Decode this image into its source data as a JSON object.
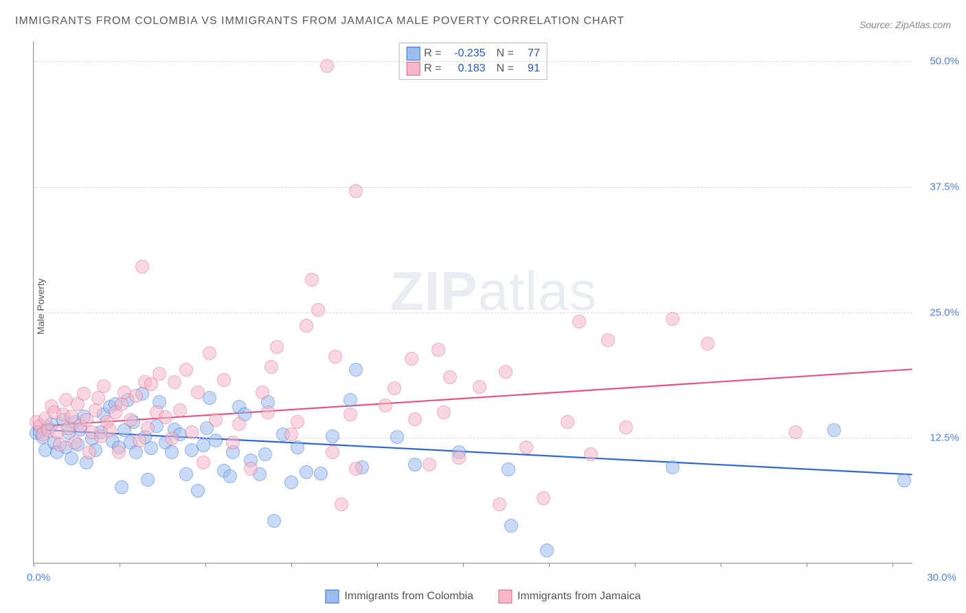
{
  "title": "IMMIGRANTS FROM COLOMBIA VS IMMIGRANTS FROM JAMAICA MALE POVERTY CORRELATION CHART",
  "source": "Source: ZipAtlas.com",
  "ylabel": "Male Poverty",
  "watermark_a": "ZIP",
  "watermark_b": "atlas",
  "chart": {
    "type": "scatter",
    "xlim": [
      0,
      30
    ],
    "ylim": [
      0,
      52
    ],
    "x_min_label": "0.0%",
    "x_max_label": "30.0%",
    "x_tick_positions": [
      0,
      2.93,
      5.86,
      8.79,
      11.72,
      14.65,
      17.58,
      20.51,
      23.44,
      26.37,
      29.3
    ],
    "y_ticks": [
      {
        "v": 12.5,
        "label": "12.5%"
      },
      {
        "v": 25.0,
        "label": "25.0%"
      },
      {
        "v": 37.5,
        "label": "37.5%"
      },
      {
        "v": 50.0,
        "label": "50.0%"
      }
    ],
    "background_color": "#ffffff",
    "grid_color": "#d8d8d8",
    "marker_radius": 10,
    "marker_opacity": 0.55,
    "line_width": 2.2,
    "series": [
      {
        "name": "Immigrants from Colombia",
        "color_fill": "#9cbdf0",
        "color_stroke": "#3a72d8",
        "line_color": "#2e66d0",
        "R": "-0.235",
        "N": "77",
        "trend": {
          "x1": 0,
          "y1": 13.3,
          "x2": 30,
          "y2": 8.8
        },
        "points": [
          [
            0.1,
            12.9
          ],
          [
            0.2,
            13.1
          ],
          [
            0.3,
            12.5
          ],
          [
            0.4,
            11.2
          ],
          [
            0.5,
            13.4
          ],
          [
            0.6,
            13.8
          ],
          [
            0.7,
            12.0
          ],
          [
            0.8,
            11.0
          ],
          [
            1.0,
            14.2
          ],
          [
            1.1,
            11.5
          ],
          [
            1.2,
            12.9
          ],
          [
            1.3,
            10.4
          ],
          [
            1.4,
            14.0
          ],
          [
            1.5,
            11.8
          ],
          [
            1.6,
            13.3
          ],
          [
            1.7,
            14.6
          ],
          [
            1.8,
            10.0
          ],
          [
            2.0,
            12.4
          ],
          [
            2.1,
            11.2
          ],
          [
            2.3,
            13.0
          ],
          [
            2.4,
            14.8
          ],
          [
            2.6,
            15.5
          ],
          [
            2.7,
            12.1
          ],
          [
            2.8,
            15.8
          ],
          [
            2.9,
            11.5
          ],
          [
            3.0,
            7.5
          ],
          [
            3.1,
            13.2
          ],
          [
            3.2,
            16.2
          ],
          [
            3.3,
            12.0
          ],
          [
            3.4,
            14.0
          ],
          [
            3.5,
            11.0
          ],
          [
            3.7,
            16.8
          ],
          [
            3.8,
            12.5
          ],
          [
            3.9,
            8.3
          ],
          [
            4.0,
            11.4
          ],
          [
            4.2,
            13.6
          ],
          [
            4.3,
            16.0
          ],
          [
            4.5,
            12.0
          ],
          [
            4.7,
            11.0
          ],
          [
            4.8,
            13.3
          ],
          [
            5.0,
            12.8
          ],
          [
            5.2,
            8.8
          ],
          [
            5.4,
            11.2
          ],
          [
            5.6,
            7.2
          ],
          [
            5.8,
            11.7
          ],
          [
            5.9,
            13.4
          ],
          [
            6.0,
            16.4
          ],
          [
            6.2,
            12.2
          ],
          [
            6.5,
            9.2
          ],
          [
            6.7,
            8.6
          ],
          [
            6.8,
            11.0
          ],
          [
            7.0,
            15.5
          ],
          [
            7.2,
            14.8
          ],
          [
            7.4,
            10.2
          ],
          [
            7.7,
            8.8
          ],
          [
            7.9,
            10.8
          ],
          [
            8.0,
            16.0
          ],
          [
            8.2,
            4.2
          ],
          [
            8.5,
            12.8
          ],
          [
            8.8,
            8.0
          ],
          [
            9.0,
            11.5
          ],
          [
            9.3,
            9.0
          ],
          [
            9.8,
            8.9
          ],
          [
            10.2,
            12.6
          ],
          [
            10.8,
            16.2
          ],
          [
            11.0,
            19.2
          ],
          [
            11.2,
            9.5
          ],
          [
            12.4,
            12.5
          ],
          [
            13.0,
            9.8
          ],
          [
            14.5,
            11.0
          ],
          [
            16.2,
            9.3
          ],
          [
            16.3,
            3.7
          ],
          [
            17.5,
            1.2
          ],
          [
            21.8,
            9.5
          ],
          [
            27.3,
            13.2
          ],
          [
            29.7,
            8.2
          ]
        ]
      },
      {
        "name": "Immigrants from Jamaica",
        "color_fill": "#f4b8c9",
        "color_stroke": "#e06a8e",
        "line_color": "#e3547e",
        "R": "0.183",
        "N": "91",
        "trend": {
          "x1": 0,
          "y1": 13.6,
          "x2": 30,
          "y2": 19.3
        },
        "points": [
          [
            0.1,
            14.0
          ],
          [
            0.2,
            13.6
          ],
          [
            0.3,
            12.8
          ],
          [
            0.4,
            14.4
          ],
          [
            0.5,
            13.2
          ],
          [
            0.6,
            15.6
          ],
          [
            0.7,
            15.0
          ],
          [
            0.8,
            13.0
          ],
          [
            0.9,
            11.8
          ],
          [
            1.0,
            14.8
          ],
          [
            1.1,
            16.2
          ],
          [
            1.2,
            13.4
          ],
          [
            1.3,
            14.6
          ],
          [
            1.4,
            12.0
          ],
          [
            1.5,
            15.8
          ],
          [
            1.6,
            13.6
          ],
          [
            1.7,
            16.8
          ],
          [
            1.8,
            14.2
          ],
          [
            1.9,
            11.0
          ],
          [
            2.0,
            13.0
          ],
          [
            2.1,
            15.2
          ],
          [
            2.2,
            16.4
          ],
          [
            2.3,
            12.6
          ],
          [
            2.4,
            17.6
          ],
          [
            2.5,
            14.0
          ],
          [
            2.6,
            13.2
          ],
          [
            2.8,
            15.0
          ],
          [
            2.9,
            11.0
          ],
          [
            3.0,
            15.8
          ],
          [
            3.1,
            17.0
          ],
          [
            3.3,
            14.2
          ],
          [
            3.5,
            16.6
          ],
          [
            3.6,
            12.2
          ],
          [
            3.7,
            29.5
          ],
          [
            3.8,
            18.0
          ],
          [
            3.9,
            13.4
          ],
          [
            4.0,
            17.8
          ],
          [
            4.2,
            15.0
          ],
          [
            4.3,
            18.8
          ],
          [
            4.5,
            14.5
          ],
          [
            4.7,
            12.4
          ],
          [
            4.8,
            18.0
          ],
          [
            5.0,
            15.2
          ],
          [
            5.2,
            19.2
          ],
          [
            5.4,
            13.0
          ],
          [
            5.6,
            17.0
          ],
          [
            5.8,
            10.0
          ],
          [
            6.0,
            20.9
          ],
          [
            6.2,
            14.2
          ],
          [
            6.5,
            18.2
          ],
          [
            6.8,
            12.0
          ],
          [
            7.0,
            13.8
          ],
          [
            7.4,
            9.4
          ],
          [
            7.8,
            17.0
          ],
          [
            8.0,
            15.0
          ],
          [
            8.1,
            19.5
          ],
          [
            8.3,
            21.5
          ],
          [
            8.8,
            12.8
          ],
          [
            9.0,
            14.0
          ],
          [
            9.3,
            23.6
          ],
          [
            9.5,
            28.2
          ],
          [
            9.7,
            25.2
          ],
          [
            10.0,
            49.5
          ],
          [
            10.2,
            11.0
          ],
          [
            10.3,
            20.5
          ],
          [
            10.5,
            5.8
          ],
          [
            10.8,
            14.8
          ],
          [
            11.0,
            9.4
          ],
          [
            11.0,
            37.0
          ],
          [
            12.0,
            15.7
          ],
          [
            12.3,
            17.4
          ],
          [
            12.9,
            20.3
          ],
          [
            13.0,
            14.3
          ],
          [
            13.5,
            9.8
          ],
          [
            13.8,
            21.2
          ],
          [
            14.0,
            15.0
          ],
          [
            14.2,
            18.5
          ],
          [
            14.5,
            10.5
          ],
          [
            15.2,
            17.5
          ],
          [
            15.9,
            5.8
          ],
          [
            16.1,
            19.0
          ],
          [
            16.8,
            11.5
          ],
          [
            17.4,
            6.4
          ],
          [
            18.2,
            14.0
          ],
          [
            18.6,
            24.0
          ],
          [
            19.0,
            10.8
          ],
          [
            19.6,
            22.2
          ],
          [
            20.2,
            13.5
          ],
          [
            21.8,
            24.3
          ],
          [
            23.0,
            21.8
          ],
          [
            26.0,
            13.0
          ]
        ]
      }
    ]
  },
  "legend": {
    "items": [
      {
        "label": "Immigrants from Colombia",
        "fill": "#9cbdf0",
        "stroke": "#3a72d8"
      },
      {
        "label": "Immigrants from Jamaica",
        "fill": "#f4b8c9",
        "stroke": "#e06a8e"
      }
    ]
  }
}
